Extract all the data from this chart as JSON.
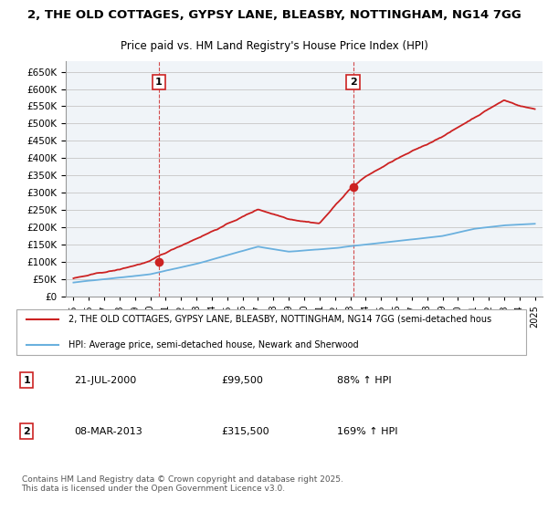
{
  "title_line1": "2, THE OLD COTTAGES, GYPSY LANE, BLEASBY, NOTTINGHAM, NG14 7GG",
  "title_line2": "Price paid vs. HM Land Registry's House Price Index (HPI)",
  "legend_line1": "2, THE OLD COTTAGES, GYPSY LANE, BLEASBY, NOTTINGHAM, NG14 7GG (semi-detached hous",
  "legend_line2": "HPI: Average price, semi-detached house, Newark and Sherwood",
  "footer": "Contains HM Land Registry data © Crown copyright and database right 2025.\nThis data is licensed under the Open Government Licence v3.0.",
  "annotation1": {
    "label": "1",
    "date": "21-JUL-2000",
    "price": "£99,500",
    "pct": "88% ↑ HPI"
  },
  "annotation2": {
    "label": "2",
    "date": "08-MAR-2013",
    "price": "£315,500",
    "pct": "169% ↑ HPI"
  },
  "purchase1_x": 2000.55,
  "purchase1_y": 99500,
  "purchase2_x": 2013.18,
  "purchase2_y": 315500,
  "vline1_x": 2000.55,
  "vline2_x": 2013.18,
  "hpi_color": "#6ab0de",
  "price_color": "#cc2222",
  "vline_color": "#cc2222",
  "bg_color": "#f0f4f8",
  "plot_bg": "#f0f4f8",
  "grid_color": "#cccccc",
  "ylim": [
    0,
    680000
  ],
  "yticks": [
    0,
    50000,
    100000,
    150000,
    200000,
    250000,
    300000,
    350000,
    400000,
    450000,
    500000,
    550000,
    600000,
    650000
  ],
  "xlim_start": 1994.5,
  "xlim_end": 2025.5,
  "xticks": [
    1995,
    1996,
    1997,
    1998,
    1999,
    2000,
    2001,
    2002,
    2003,
    2004,
    2005,
    2006,
    2007,
    2008,
    2009,
    2010,
    2011,
    2012,
    2013,
    2014,
    2015,
    2016,
    2017,
    2018,
    2019,
    2020,
    2021,
    2022,
    2023,
    2024,
    2025
  ]
}
